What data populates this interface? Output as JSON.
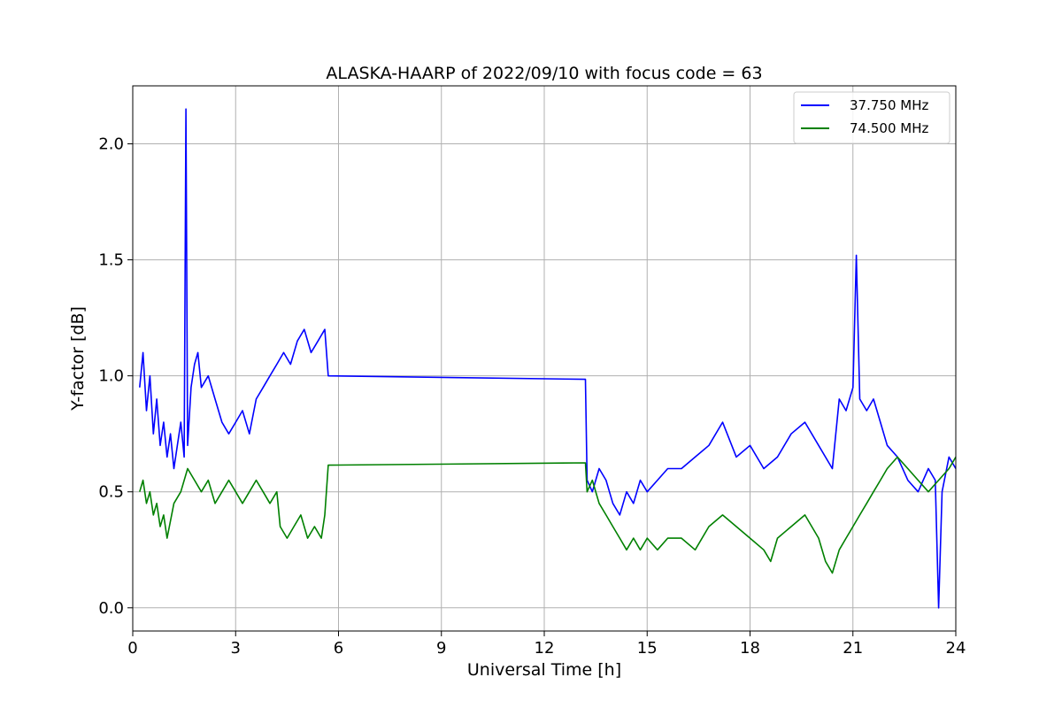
{
  "chart_data": {
    "type": "line",
    "title": "ALASKA-HAARP of 2022/09/10 with focus code = 63",
    "xlabel": "Universal Time [h]",
    "ylabel": "Y-factor [dB]",
    "xlim": [
      0,
      24
    ],
    "ylim": [
      -0.1,
      2.25
    ],
    "xticks": [
      0,
      3,
      6,
      9,
      12,
      15,
      18,
      21,
      24
    ],
    "xtick_labels": [
      "0",
      "3",
      "6",
      "9",
      "12",
      "15",
      "18",
      "21",
      "24"
    ],
    "yticks": [
      0.0,
      0.5,
      1.0,
      1.5,
      2.0
    ],
    "ytick_labels": [
      "0.0",
      "0.5",
      "1.0",
      "1.5",
      "2.0"
    ],
    "grid": true,
    "legend_position": "top-right",
    "series": [
      {
        "name": "37.750 MHz",
        "color": "#0000ff",
        "x": [
          0.2,
          0.3,
          0.4,
          0.5,
          0.6,
          0.7,
          0.8,
          0.9,
          1.0,
          1.1,
          1.2,
          1.3,
          1.4,
          1.5,
          1.55,
          1.6,
          1.7,
          1.8,
          1.9,
          2.0,
          2.2,
          2.4,
          2.6,
          2.8,
          3.0,
          3.2,
          3.4,
          3.6,
          3.8,
          4.0,
          4.2,
          4.4,
          4.6,
          4.8,
          5.0,
          5.2,
          5.4,
          5.6,
          5.7,
          13.2,
          13.25,
          13.4,
          13.6,
          13.8,
          14.0,
          14.2,
          14.4,
          14.6,
          14.8,
          15.0,
          15.3,
          15.6,
          16.0,
          16.4,
          16.8,
          17.2,
          17.6,
          18.0,
          18.4,
          18.8,
          19.2,
          19.6,
          20.0,
          20.4,
          20.6,
          20.8,
          21.0,
          21.1,
          21.2,
          21.4,
          21.6,
          21.8,
          22.0,
          22.3,
          22.6,
          22.9,
          23.2,
          23.4,
          23.5,
          23.6,
          23.8,
          24.0
        ],
        "values": [
          0.95,
          1.1,
          0.85,
          1.0,
          0.75,
          0.9,
          0.7,
          0.8,
          0.65,
          0.75,
          0.6,
          0.7,
          0.8,
          0.65,
          2.15,
          0.7,
          0.95,
          1.05,
          1.1,
          0.95,
          1.0,
          0.9,
          0.8,
          0.75,
          0.8,
          0.85,
          0.75,
          0.9,
          0.95,
          1.0,
          1.05,
          1.1,
          1.05,
          1.15,
          1.2,
          1.1,
          1.15,
          1.2,
          1.0,
          0.985,
          0.55,
          0.5,
          0.6,
          0.55,
          0.45,
          0.4,
          0.5,
          0.45,
          0.55,
          0.5,
          0.55,
          0.6,
          0.6,
          0.65,
          0.7,
          0.8,
          0.65,
          0.7,
          0.6,
          0.65,
          0.75,
          0.8,
          0.7,
          0.6,
          0.9,
          0.85,
          0.95,
          1.52,
          0.9,
          0.85,
          0.9,
          0.8,
          0.7,
          0.65,
          0.55,
          0.5,
          0.6,
          0.55,
          0.0,
          0.5,
          0.65,
          0.6
        ]
      },
      {
        "name": "74.500 MHz",
        "color": "#008000",
        "x": [
          0.2,
          0.3,
          0.4,
          0.5,
          0.6,
          0.7,
          0.8,
          0.9,
          1.0,
          1.2,
          1.4,
          1.6,
          1.8,
          2.0,
          2.2,
          2.4,
          2.6,
          2.8,
          3.0,
          3.2,
          3.4,
          3.6,
          3.8,
          4.0,
          4.2,
          4.3,
          4.5,
          4.7,
          4.9,
          5.1,
          5.3,
          5.5,
          5.6,
          5.7,
          13.2,
          13.25,
          13.4,
          13.6,
          13.8,
          14.0,
          14.2,
          14.4,
          14.6,
          14.8,
          15.0,
          15.3,
          15.6,
          16.0,
          16.4,
          16.8,
          17.2,
          17.6,
          18.0,
          18.4,
          18.6,
          18.8,
          19.2,
          19.6,
          20.0,
          20.2,
          20.4,
          20.6,
          20.8,
          21.0,
          21.2,
          21.4,
          21.6,
          21.8,
          22.0,
          22.3,
          22.6,
          22.9,
          23.2,
          23.5,
          23.8,
          24.0
        ],
        "values": [
          0.5,
          0.55,
          0.45,
          0.5,
          0.4,
          0.45,
          0.35,
          0.4,
          0.3,
          0.45,
          0.5,
          0.6,
          0.55,
          0.5,
          0.55,
          0.45,
          0.5,
          0.55,
          0.5,
          0.45,
          0.5,
          0.55,
          0.5,
          0.45,
          0.5,
          0.35,
          0.3,
          0.35,
          0.4,
          0.3,
          0.35,
          0.3,
          0.4,
          0.615,
          0.625,
          0.5,
          0.55,
          0.45,
          0.4,
          0.35,
          0.3,
          0.25,
          0.3,
          0.25,
          0.3,
          0.25,
          0.3,
          0.3,
          0.25,
          0.35,
          0.4,
          0.35,
          0.3,
          0.25,
          0.2,
          0.3,
          0.35,
          0.4,
          0.3,
          0.2,
          0.15,
          0.25,
          0.3,
          0.35,
          0.4,
          0.45,
          0.5,
          0.55,
          0.6,
          0.65,
          0.6,
          0.55,
          0.5,
          0.55,
          0.6,
          0.65
        ]
      }
    ]
  }
}
